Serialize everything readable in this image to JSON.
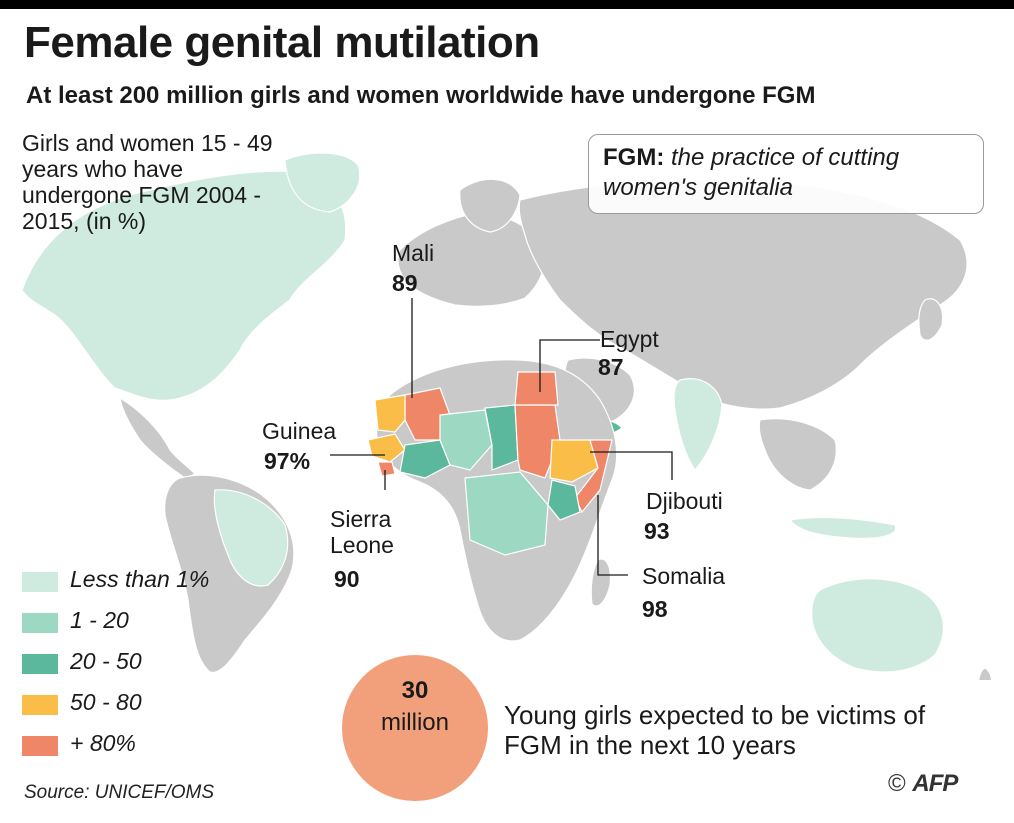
{
  "header": {
    "title": "Female genital mutilation",
    "subtitle": "At least 200 million girls and women worldwide have undergone FGM"
  },
  "legend": {
    "title": "Girls and women 15 - 49 years who have undergone FGM 2004 - 2015, (in %)",
    "items": [
      {
        "label": "Less than 1%",
        "color": "#cfeade"
      },
      {
        "label": "1 - 20",
        "color": "#9dd9c2"
      },
      {
        "label": "20 - 50",
        "color": "#5bb89d"
      },
      {
        "label": "50 - 80",
        "color": "#f9bd48"
      },
      {
        "label": "+ 80%",
        "color": "#ee8667"
      }
    ]
  },
  "definition": {
    "term": "FGM:",
    "text": "the practice of cutting women's genitalia"
  },
  "countries": [
    {
      "name": "Mali",
      "value": "89"
    },
    {
      "name": "Egypt",
      "value": "87"
    },
    {
      "name": "Guinea",
      "value": "97%"
    },
    {
      "name": "Sierra Leone",
      "value": "90"
    },
    {
      "name": "Djibouti",
      "value": "93"
    },
    {
      "name": "Somalia",
      "value": "98"
    }
  ],
  "callout": {
    "number": "30",
    "unit": "million",
    "text": "Young girls expected to be victims of FGM in the next 10 years"
  },
  "footer": {
    "source": "Source: UNICEF/OMS",
    "copyright": "©",
    "agency": "AFP"
  },
  "colors": {
    "land": "#c9c9c9",
    "border": "#ffffff",
    "bubble": "#f2a07b"
  }
}
